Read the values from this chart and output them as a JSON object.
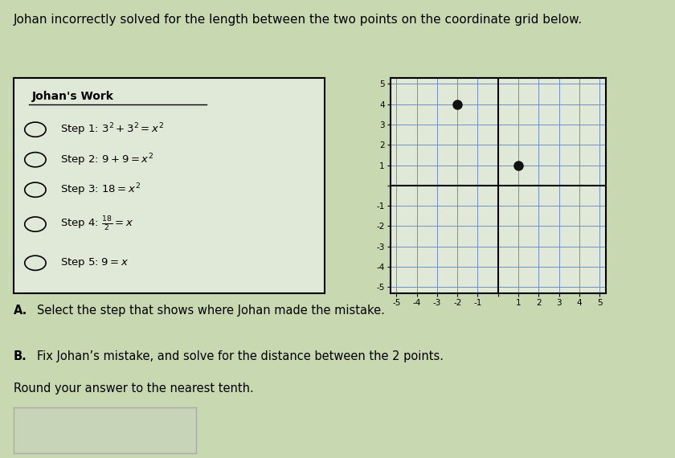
{
  "title": "Johan incorrectly solved for the length between the two points on the coordinate grid below.",
  "title_fontsize": 11,
  "background_color": "#c8d8b0",
  "box_bg": "#e0e8d8",
  "work_title": "Johan's Work",
  "steps": [
    "Step 1: $3^2 + 3^2 = x^2$",
    "Step 2: $9 + 9 = x^2$",
    "Step 3: $18 = x^2$",
    "Step 4: $\\frac{18}{2} = x$",
    "Step 5: $9 = x$"
  ],
  "point1": [
    -2,
    4
  ],
  "point2": [
    1,
    1
  ],
  "grid_range": [
    -5,
    5
  ],
  "grid_color": "#7090c0",
  "axis_color": "#000000",
  "point_color": "#111111",
  "answer_box_color": "#c8d4b8"
}
